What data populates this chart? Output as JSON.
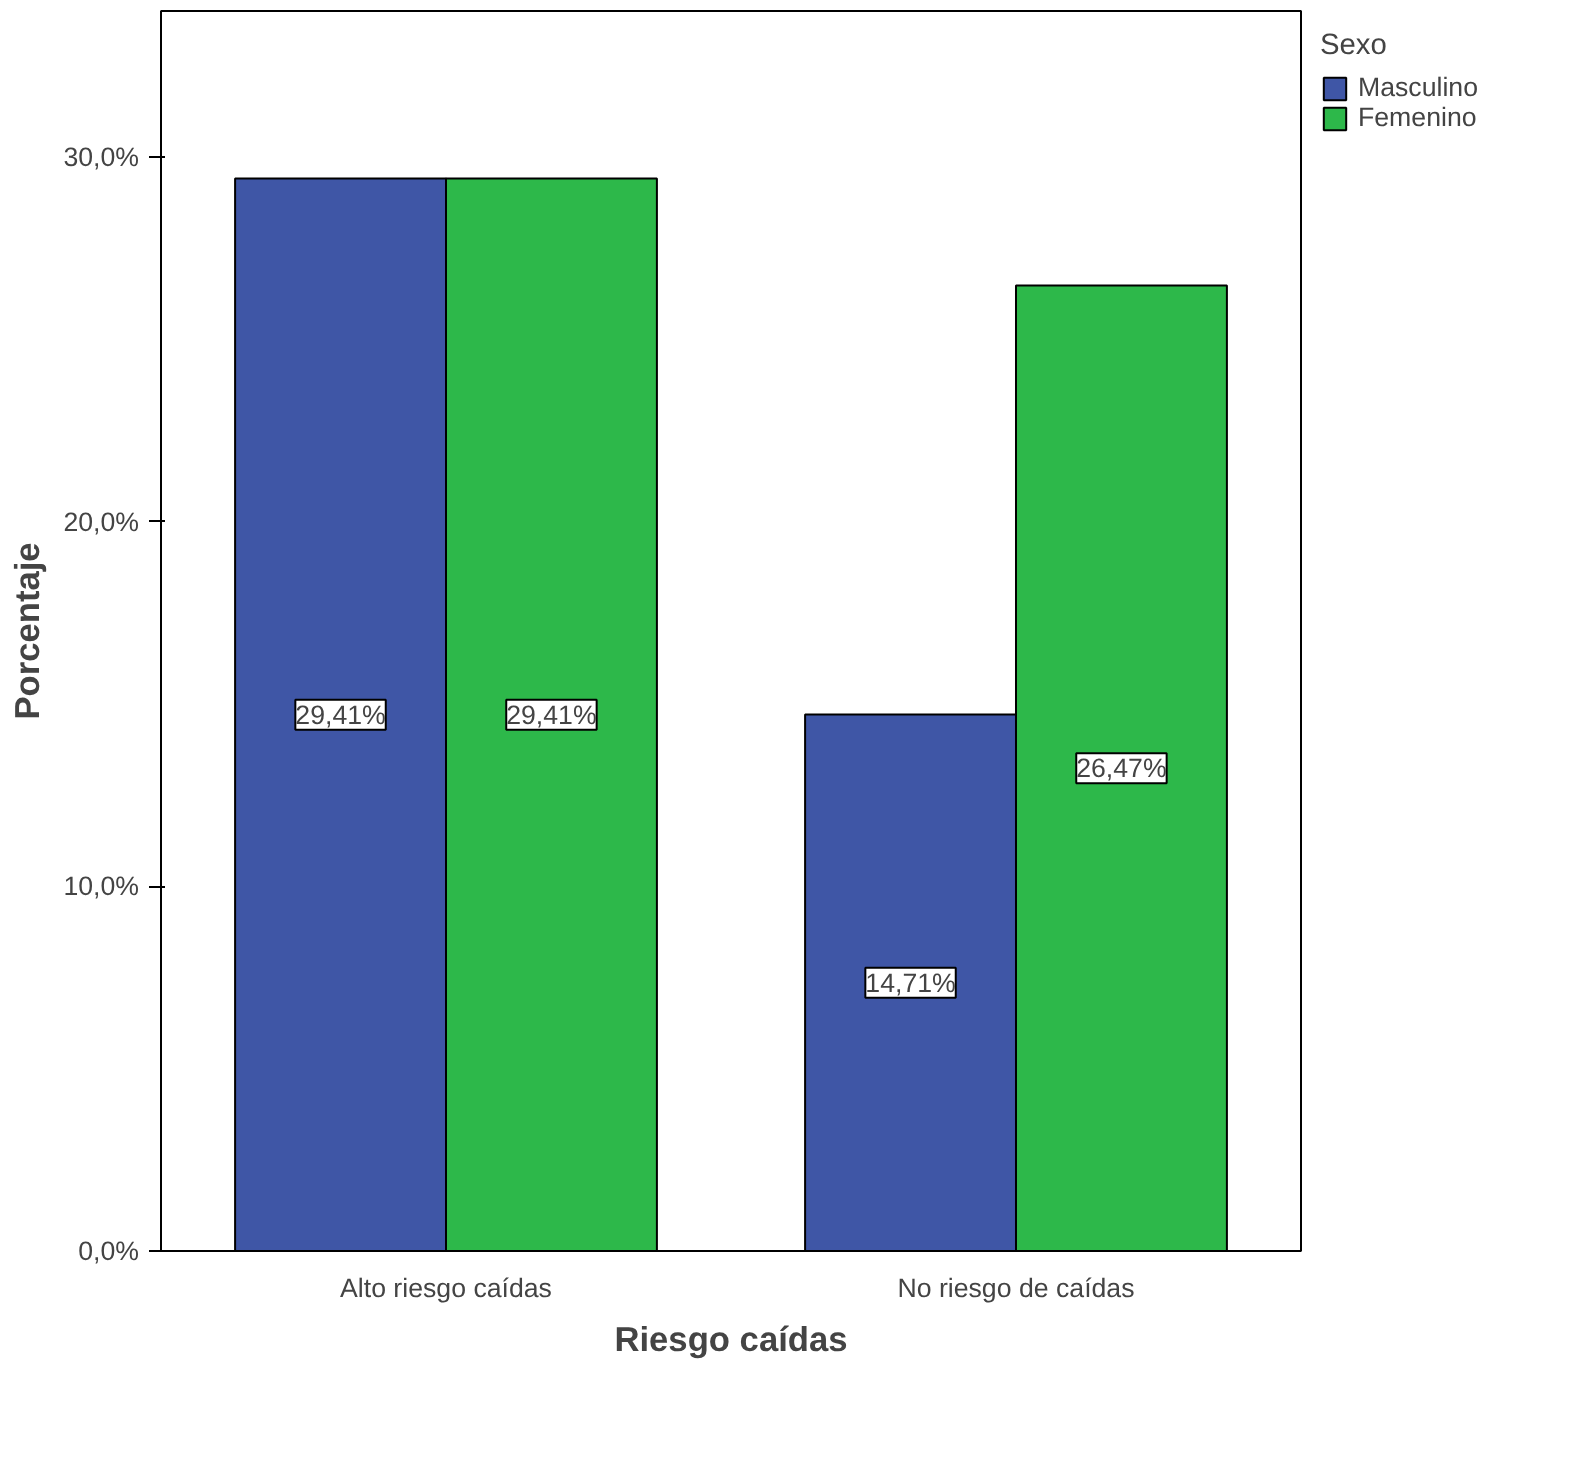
{
  "chart_data": {
    "type": "bar",
    "xlabel": "Riesgo caídas",
    "ylabel": "Porcentaje",
    "legend_title": "Sexo",
    "categories": [
      "Alto riesgo caídas",
      "No riesgo de caídas"
    ],
    "series": [
      {
        "name": "Masculino",
        "color": "#3f56a6",
        "values": [
          29.41,
          14.71
        ],
        "value_labels": [
          "29,41%",
          "14,71%"
        ]
      },
      {
        "name": "Femenino",
        "color": "#2db84a",
        "values": [
          29.41,
          26.47
        ],
        "value_labels": [
          "29,41%",
          "26,47%"
        ]
      }
    ],
    "ylim": [
      0,
      34
    ],
    "yticks": [
      {
        "value": 0,
        "label": "0,0%"
      },
      {
        "value": 10,
        "label": "10,0%"
      },
      {
        "value": 20,
        "label": "20,0%"
      },
      {
        "value": 30,
        "label": "30,0%"
      }
    ],
    "grid": false,
    "legend": "top right"
  }
}
